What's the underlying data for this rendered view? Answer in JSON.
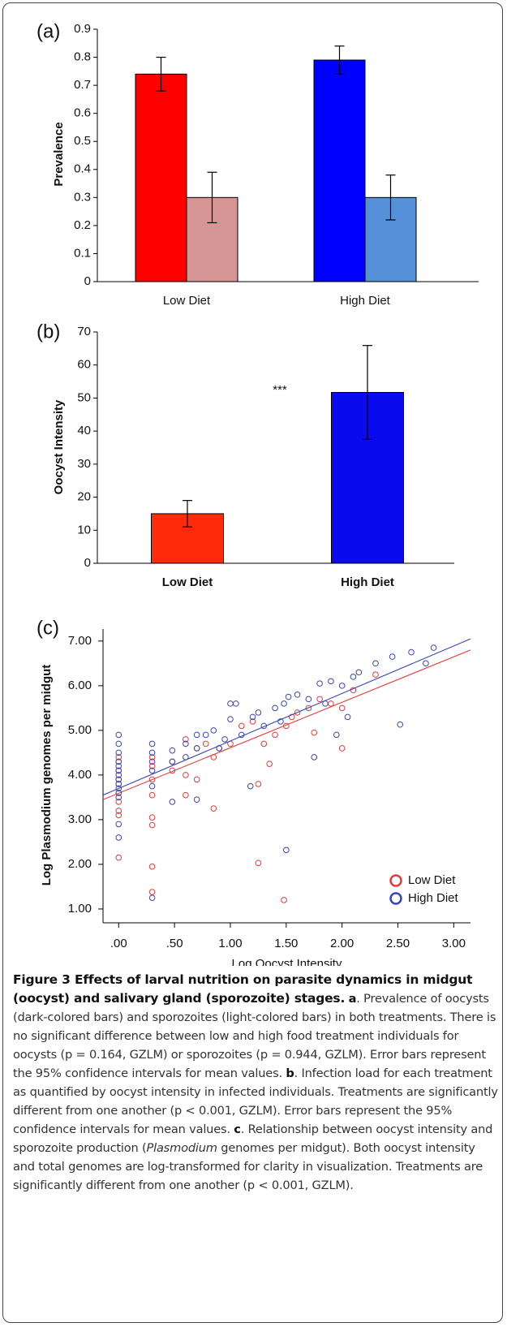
{
  "chart_data": [
    {
      "type": "bar",
      "panel_label": "(a)",
      "ylabel": "Prevalence",
      "categories": [
        "Low Diet",
        "High Diet"
      ],
      "series": [
        {
          "color": "#ff0000",
          "values": [
            0.74,
            0.79
          ],
          "errors": [
            0.06,
            0.05
          ]
        },
        {
          "color": "#d79696",
          "values": [
            0.3,
            0.3
          ],
          "errors": [
            0.09,
            0.08
          ]
        }
      ],
      "bar_colors": [
        [
          "#ff0000",
          "#0000ff"
        ],
        [
          "#d79696",
          "#5590d8"
        ]
      ],
      "ylim": [
        0,
        0.9
      ],
      "yticks": [
        0,
        0.1,
        0.2,
        0.3,
        0.4,
        0.5,
        0.6,
        0.7,
        0.8,
        0.9
      ]
    },
    {
      "type": "bar",
      "panel_label": "(b)",
      "ylabel": "Oocyst Intensity",
      "categories": [
        "Low Diet",
        "High Diet"
      ],
      "values": [
        15,
        51.7
      ],
      "errors": [
        4,
        14.2
      ],
      "colors": [
        "#ff2a0a",
        "#0a0aee"
      ],
      "annotation": "***",
      "ylim": [
        0,
        70
      ],
      "yticks": [
        0,
        10,
        20,
        30,
        40,
        50,
        60,
        70
      ]
    },
    {
      "type": "scatter",
      "panel_label": "(c)",
      "xlabel": "Log Oocyst Intensity",
      "ylabel": "Log Plasmodium genomes per midgut",
      "xlim": [
        -0.14,
        3.15
      ],
      "ylim": [
        0.69,
        7.27
      ],
      "xticks": [
        {
          "value": 0,
          "label": ".00"
        },
        {
          "value": 0.5,
          "label": ".50"
        },
        {
          "value": 1,
          "label": "1.00"
        },
        {
          "value": 1.5,
          "label": "1.50"
        },
        {
          "value": 2,
          "label": "2.00"
        },
        {
          "value": 2.5,
          "label": "2.50"
        },
        {
          "value": 3,
          "label": "3.00"
        }
      ],
      "yticks": [
        {
          "value": 1,
          "label": "1.00"
        },
        {
          "value": 2,
          "label": "2.00"
        },
        {
          "value": 3,
          "label": "3.00"
        },
        {
          "value": 4,
          "label": "4.00"
        },
        {
          "value": 5,
          "label": "5.00"
        },
        {
          "value": 6,
          "label": "6.00"
        },
        {
          "value": 7,
          "label": "7.00"
        }
      ],
      "series": [
        {
          "name": "Low Diet",
          "color": "#e8393a",
          "x": [
            0,
            0,
            0,
            0,
            0,
            0,
            0,
            0,
            0,
            0,
            0.3,
            0.3,
            0.3,
            0.3,
            0.3,
            0.3,
            0.3,
            0.3,
            0.48,
            0.48,
            0.6,
            0.6,
            0.6,
            0.7,
            0.7,
            0.78,
            0.85,
            0.85,
            0.9,
            1.0,
            1.1,
            1.2,
            1.25,
            1.25,
            1.3,
            1.4,
            1.48,
            1.5,
            1.55,
            1.6,
            1.7,
            1.75,
            1.9,
            2.0,
            2.0,
            2.1,
            2.3,
            1.35,
            1.8
          ],
          "values": [
            4.4,
            4.3,
            4.1,
            3.9,
            3.8,
            3.6,
            3.4,
            3.2,
            3.1,
            2.15,
            4.4,
            4.2,
            3.9,
            3.55,
            3.05,
            2.88,
            1.95,
            1.38,
            4.3,
            4.1,
            4.8,
            4.0,
            3.55,
            4.6,
            3.9,
            4.7,
            4.4,
            3.25,
            4.6,
            4.7,
            5.1,
            5.2,
            3.8,
            2.03,
            4.7,
            4.9,
            1.2,
            5.1,
            5.3,
            5.4,
            5.5,
            4.95,
            5.6,
            5.5,
            4.6,
            5.9,
            6.25,
            4.25,
            5.7
          ],
          "trend": {
            "x": [
              -0.14,
              3.15
            ],
            "y": [
              3.45,
              6.8
            ]
          }
        },
        {
          "name": "High Diet",
          "color": "#3a45b8",
          "x": [
            0,
            0,
            0,
            0,
            0,
            0,
            0,
            0,
            0,
            0,
            0,
            0,
            0,
            0,
            0.3,
            0.3,
            0.3,
            0.3,
            0.3,
            0.3,
            0.48,
            0.48,
            0.48,
            0.6,
            0.6,
            0.7,
            0.7,
            0.7,
            0.78,
            0.85,
            0.9,
            1.0,
            1.0,
            1.05,
            1.1,
            1.18,
            1.2,
            1.3,
            1.4,
            1.48,
            1.5,
            1.52,
            1.6,
            1.7,
            1.75,
            1.8,
            1.85,
            1.9,
            1.95,
            2.0,
            2.05,
            2.1,
            2.15,
            2.3,
            2.45,
            2.52,
            2.62,
            2.75,
            2.82,
            1.25,
            1.45,
            0.95
          ],
          "values": [
            4.9,
            4.7,
            4.5,
            4.3,
            4.2,
            4.1,
            4.0,
            3.9,
            3.8,
            3.7,
            3.6,
            3.5,
            2.9,
            2.6,
            4.7,
            4.5,
            4.3,
            4.1,
            3.75,
            1.25,
            4.55,
            4.3,
            3.4,
            4.7,
            4.4,
            4.9,
            4.6,
            3.45,
            4.9,
            5.0,
            4.6,
            5.25,
            5.6,
            5.6,
            4.9,
            3.75,
            5.3,
            5.1,
            5.5,
            5.6,
            2.32,
            5.75,
            5.8,
            5.7,
            4.4,
            6.05,
            5.6,
            6.1,
            4.9,
            6.0,
            5.3,
            6.2,
            6.3,
            6.5,
            6.65,
            5.13,
            6.75,
            6.5,
            6.85,
            5.4,
            5.2,
            4.8
          ],
          "trend": {
            "x": [
              -0.14,
              3.15
            ],
            "y": [
              3.55,
              7.05
            ]
          }
        }
      ]
    }
  ],
  "caption": {
    "title": "Figure 3 Effects of larval nutrition on parasite dynamics in midgut (oocyst) and salivary gland (sporozoite) stages.",
    "a_label": "a",
    "a_text": ". Prevalence of oocysts (dark-colored bars) and sporozoites (light-colored bars) in both treatments. There is no significant difference between low and high food treatment individuals for oocysts (p = 0.164, GZLM) or sporozoites (p = 0.944, GZLM). Error bars represent the 95% confidence intervals for mean values.",
    "b_label": "b",
    "b_text": ". Infection load for each treatment as quantified by oocyst intensity in infected individuals. Treatments are significantly different from one another (p < 0.001, GZLM). Error bars represent the 95% confidence intervals for mean values.",
    "c_label": "c",
    "c_text_1": ". Relationship between oocyst intensity and sporozoite production (",
    "c_italic": "Plasmodium",
    "c_text_2": " genomes per midgut). Both oocyst intensity and total genomes are log-transformed for clarity in visualization. Treatments are significantly different from one another (p < 0.001, GZLM)."
  }
}
